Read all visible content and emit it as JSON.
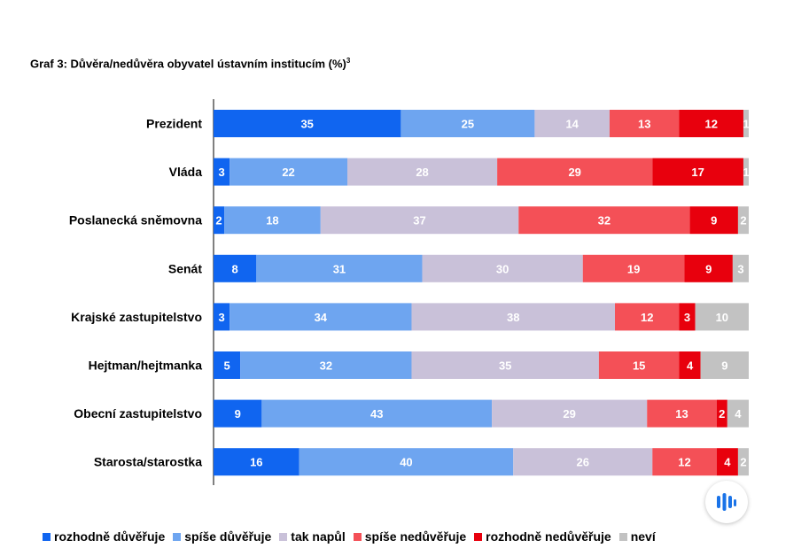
{
  "title": "Graf 3: Důvěra/nedůvěra obyvatel ústavním institucím (%)",
  "title_sup": "3",
  "icons": {
    "fab": "audio-wave-icon"
  },
  "chart_data": {
    "type": "bar",
    "orientation": "horizontal",
    "stacked": true,
    "title": "Graf 3: Důvěra/nedůvěra obyvatel ústavním institucím (%)",
    "xlabel": "",
    "ylabel": "",
    "xlim": [
      0,
      100
    ],
    "grid": false,
    "legend_position": "bottom",
    "categories": [
      "Prezident",
      "Vláda",
      "Poslanecká sněmovna",
      "Senát",
      "Krajské zastupitelstvo",
      "Hejtman/hejtmanka",
      "Obecní zastupitelstvo",
      "Starosta/starostka"
    ],
    "series": [
      {
        "name": "rozhodně důvěřuje",
        "color": "#1065F0",
        "values": [
          35,
          3,
          2,
          8,
          3,
          5,
          9,
          16
        ]
      },
      {
        "name": "spíše důvěřuje",
        "color": "#6EA5F0",
        "values": [
          25,
          22,
          18,
          31,
          34,
          32,
          43,
          40
        ]
      },
      {
        "name": "tak napůl",
        "color": "#C9C1D9",
        "values": [
          14,
          28,
          37,
          30,
          38,
          35,
          29,
          26
        ]
      },
      {
        "name": "spíše nedůvěřuje",
        "color": "#F45057",
        "values": [
          13,
          29,
          32,
          19,
          12,
          15,
          13,
          12
        ]
      },
      {
        "name": "rozhodně nedůvěřuje",
        "color": "#E8000D",
        "values": [
          12,
          17,
          9,
          9,
          3,
          4,
          2,
          4
        ]
      },
      {
        "name": "neví",
        "color": "#C2C2C2",
        "values": [
          1,
          1,
          2,
          3,
          10,
          9,
          4,
          2
        ]
      }
    ]
  }
}
